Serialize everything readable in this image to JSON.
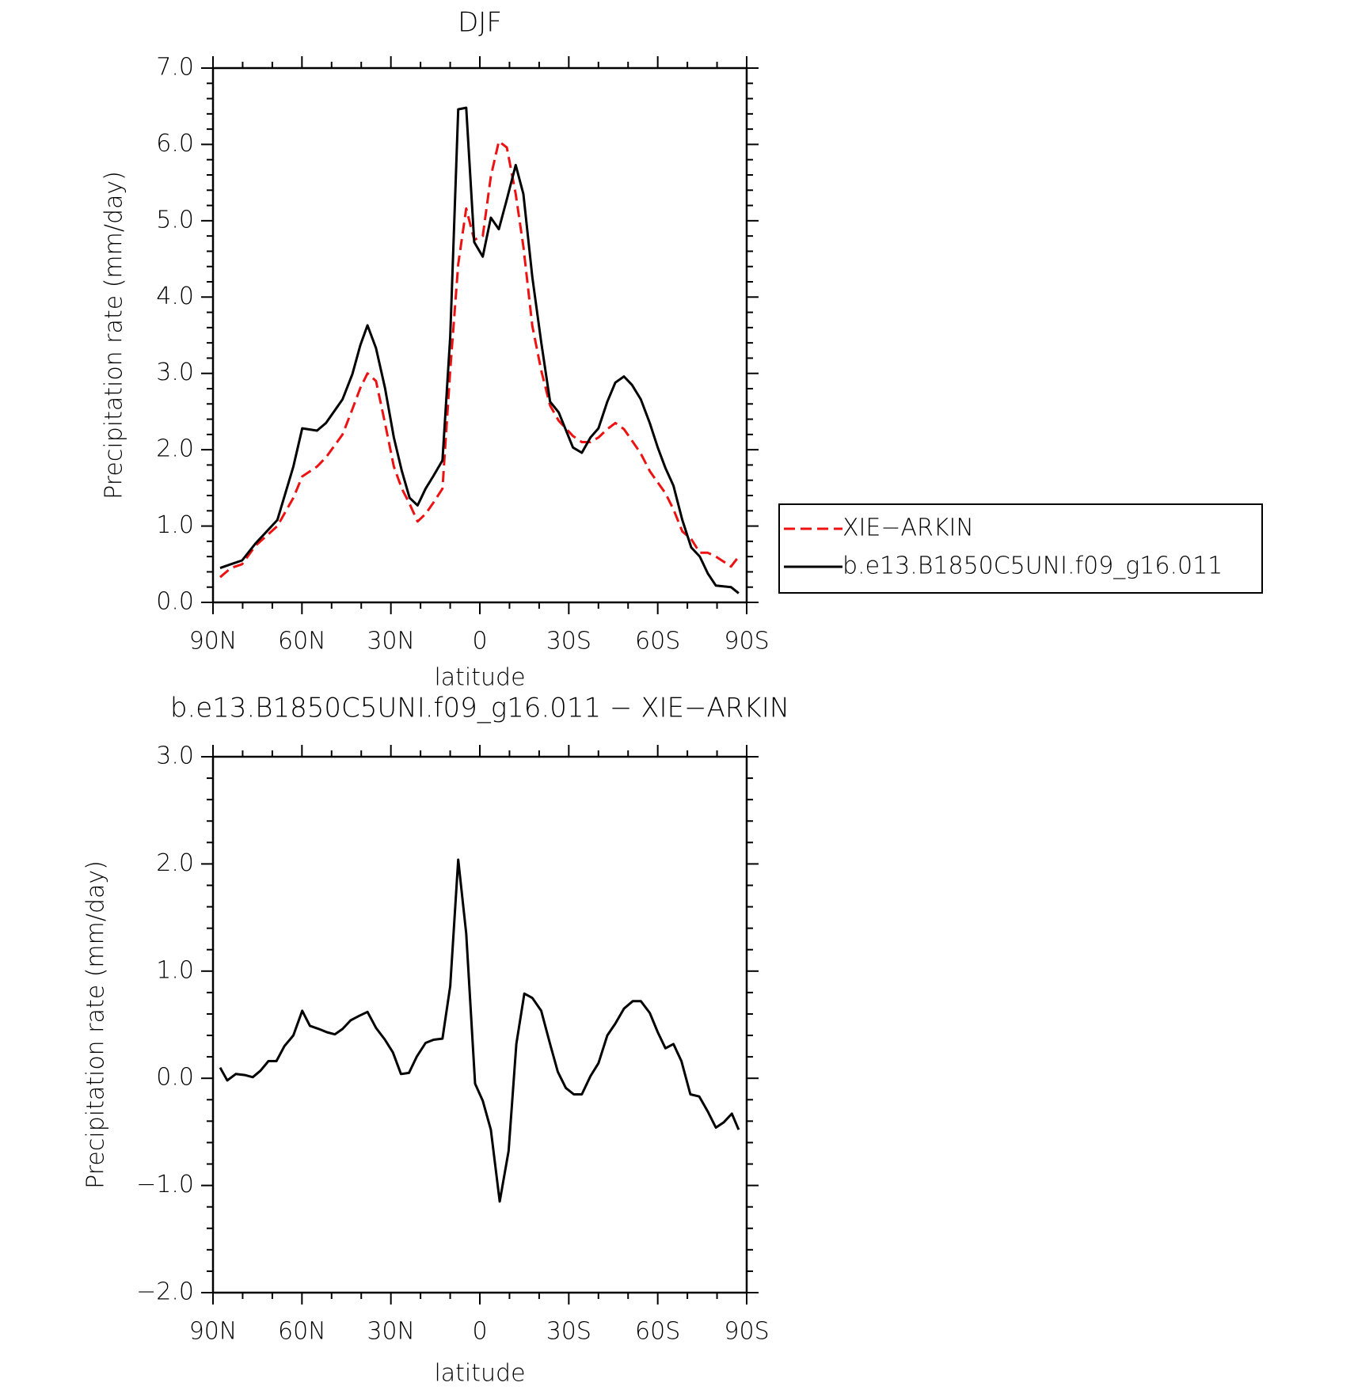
{
  "chart_data": [
    {
      "type": "line",
      "title": "DJF",
      "x_label": "latitude",
      "y_label": "Precipitation rate (mm/day)",
      "xlim": [
        90,
        -90
      ],
      "xticks": [
        {
          "value": 90,
          "label": "90N"
        },
        {
          "value": 60,
          "label": "60N"
        },
        {
          "value": 30,
          "label": "30N"
        },
        0,
        {
          "value": -30,
          "label": "30S"
        },
        {
          "value": -60,
          "label": "60S"
        },
        {
          "value": -90,
          "label": "90S"
        }
      ],
      "ylim": [
        0,
        7
      ],
      "yticks": [
        {
          "value": 0,
          "label": "0.0"
        },
        {
          "value": 1,
          "label": "1.0"
        },
        {
          "value": 2,
          "label": "2.0"
        },
        {
          "value": 3,
          "label": "3.0"
        },
        {
          "value": 4,
          "label": "4.0"
        },
        {
          "value": 5,
          "label": "5.0"
        },
        {
          "value": 6,
          "label": "6.0"
        },
        {
          "value": 7,
          "label": "7.0"
        }
      ],
      "minor_ticks": true,
      "legend": "right",
      "x": [
        87.6,
        84.0,
        80.2,
        75.7,
        68.3,
        62.9,
        59.9,
        54.9,
        51.9,
        46.3,
        43.0,
        40.3,
        37.9,
        35.0,
        32.0,
        29.0,
        26.3,
        23.7,
        21.0,
        18.3,
        15.6,
        12.6,
        10.0,
        7.3,
        4.6,
        1.9,
        -1.0,
        -3.7,
        -6.4,
        -9.1,
        -12.1,
        -14.7,
        -17.7,
        -20.7,
        -23.7,
        -26.6,
        -31.4,
        -34.4,
        -37.3,
        -40.0,
        -43.0,
        -45.7,
        -48.6,
        -51.3,
        -54.3,
        -57.3,
        -60.0,
        -62.6,
        -65.3,
        -68.3,
        -71.3,
        -74.2,
        -76.9,
        -79.6,
        -84.7,
        -87.3
      ],
      "series": [
        {
          "name": "XIE−ARKIN",
          "color": "#ee1111",
          "dash": "dashed",
          "values": [
            0.33,
            0.45,
            0.5,
            0.74,
            1.0,
            1.37,
            1.65,
            1.78,
            1.9,
            2.2,
            2.53,
            2.81,
            3.0,
            2.9,
            2.35,
            1.78,
            1.49,
            1.29,
            1.06,
            1.16,
            1.31,
            1.49,
            3.04,
            4.43,
            5.16,
            4.75,
            4.8,
            5.58,
            6.04,
            5.96,
            5.35,
            4.66,
            3.62,
            3.04,
            2.58,
            2.38,
            2.18,
            2.1,
            2.1,
            2.16,
            2.27,
            2.35,
            2.27,
            2.12,
            1.95,
            1.72,
            1.57,
            1.43,
            1.22,
            0.93,
            0.83,
            0.65,
            0.65,
            0.6,
            0.47,
            0.6
          ]
        },
        {
          "name": "b.e13.B1850C5UNI.f09_g16.011",
          "color": "#000000",
          "dash": "solid",
          "values": [
            0.45,
            0.5,
            0.55,
            0.77,
            1.08,
            1.78,
            2.28,
            2.25,
            2.35,
            2.66,
            2.99,
            3.37,
            3.63,
            3.33,
            2.81,
            2.16,
            1.72,
            1.37,
            1.27,
            1.49,
            1.66,
            1.86,
            3.48,
            6.46,
            6.48,
            4.72,
            4.53,
            5.04,
            4.89,
            5.28,
            5.73,
            5.35,
            4.26,
            3.41,
            2.63,
            2.49,
            2.03,
            1.96,
            2.16,
            2.28,
            2.63,
            2.88,
            2.96,
            2.85,
            2.66,
            2.35,
            2.03,
            1.76,
            1.53,
            1.08,
            0.72,
            0.6,
            0.38,
            0.22,
            0.2,
            0.12
          ]
        }
      ]
    },
    {
      "type": "line",
      "title": "b.e13.B1850C5UNI.f09_g16.011 − XIE−ARKIN",
      "x_label": "latitude",
      "y_label": "Precipitation rate (mm/day)",
      "xlim": [
        90,
        -90
      ],
      "xticks": [
        {
          "value": 90,
          "label": "90N"
        },
        {
          "value": 60,
          "label": "60N"
        },
        {
          "value": 30,
          "label": "30N"
        },
        0,
        {
          "value": -30,
          "label": "30S"
        },
        {
          "value": -60,
          "label": "60S"
        },
        {
          "value": -90,
          "label": "90S"
        }
      ],
      "ylim": [
        -2,
        3
      ],
      "yticks": [
        {
          "value": -2,
          "label": "−2.0"
        },
        {
          "value": -1,
          "label": "−1.0"
        },
        {
          "value": 0,
          "label": "0.0"
        },
        {
          "value": 1,
          "label": "1.0"
        },
        {
          "value": 2,
          "label": "2.0"
        },
        {
          "value": 3,
          "label": "3.0"
        }
      ],
      "minor_ticks": true,
      "x": [
        87.6,
        85.2,
        82.3,
        79.3,
        76.6,
        74.0,
        71.3,
        68.6,
        65.9,
        62.9,
        59.9,
        57.3,
        54.3,
        51.6,
        48.9,
        46.3,
        43.6,
        40.9,
        37.9,
        35.0,
        32.0,
        29.3,
        26.6,
        23.9,
        21.3,
        18.3,
        15.6,
        12.6,
        10.0,
        7.3,
        4.6,
        1.6,
        -1.0,
        -3.7,
        -6.7,
        -9.7,
        -12.3,
        -15.0,
        -17.7,
        -20.7,
        -23.7,
        -26.3,
        -29.0,
        -31.7,
        -34.4,
        -37.3,
        -40.0,
        -43.0,
        -45.7,
        -48.6,
        -51.6,
        -54.3,
        -57.3,
        -60.0,
        -62.6,
        -65.3,
        -68.0,
        -71.0,
        -74.0,
        -76.9,
        -79.6,
        -82.3,
        -85.0,
        -87.3
      ],
      "series": [
        {
          "color": "#000000",
          "dash": "solid",
          "values": [
            0.1,
            -0.02,
            0.04,
            0.03,
            0.01,
            0.07,
            0.16,
            0.16,
            0.3,
            0.4,
            0.63,
            0.49,
            0.46,
            0.43,
            0.41,
            0.46,
            0.54,
            0.58,
            0.62,
            0.47,
            0.36,
            0.24,
            0.04,
            0.05,
            0.2,
            0.33,
            0.36,
            0.37,
            0.86,
            2.04,
            1.35,
            -0.05,
            -0.21,
            -0.48,
            -1.15,
            -0.68,
            0.32,
            0.79,
            0.75,
            0.63,
            0.32,
            0.06,
            -0.09,
            -0.15,
            -0.15,
            0.02,
            0.14,
            0.4,
            0.51,
            0.65,
            0.72,
            0.72,
            0.61,
            0.43,
            0.28,
            0.32,
            0.16,
            -0.15,
            -0.17,
            -0.31,
            -0.46,
            -0.41,
            -0.33,
            -0.48
          ]
        }
      ]
    }
  ]
}
